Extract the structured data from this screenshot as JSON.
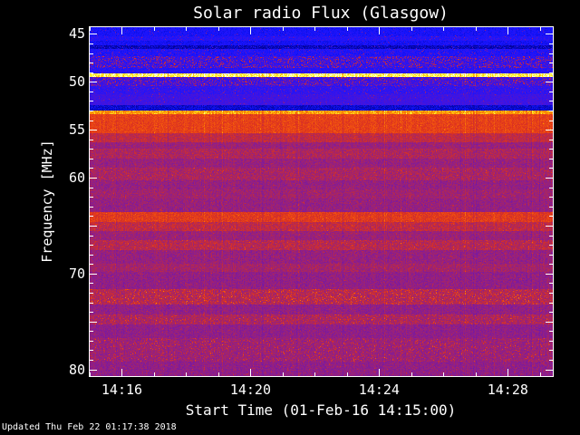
{
  "footer": {
    "updated": "Updated Thu Feb 22 01:17:38 2018"
  },
  "chart_data": {
    "type": "heatmap",
    "title": "Solar radio Flux (Glasgow)",
    "xlabel": "Start Time (01-Feb-16 14:15:00)",
    "ylabel": "Frequency [MHz]",
    "x_ticks": [
      {
        "label": "14:16",
        "minute": 16
      },
      {
        "label": "14:20",
        "minute": 20
      },
      {
        "label": "14:24",
        "minute": 24
      },
      {
        "label": "14:28",
        "minute": 28
      }
    ],
    "x_range_minutes": [
      15.0,
      29.4
    ],
    "y_ticks": [
      {
        "label": "45",
        "value": 45
      },
      {
        "label": "50",
        "value": 50
      },
      {
        "label": "55",
        "value": 55
      },
      {
        "label": "60",
        "value": 60
      },
      {
        "label": "70",
        "value": 70
      },
      {
        "label": "80",
        "value": 80
      }
    ],
    "y_major_unlabeled": [
      65,
      75
    ],
    "y_range_mhz": [
      44.3,
      80.7
    ],
    "y_axis_inverted_note": "frequency increases downward",
    "grid": false,
    "legend": "none",
    "colormap_stops": [
      [
        0.0,
        "#000020"
      ],
      [
        0.1,
        "#00008c"
      ],
      [
        0.22,
        "#1414ff"
      ],
      [
        0.33,
        "#3c14e6"
      ],
      [
        0.45,
        "#6414b4"
      ],
      [
        0.55,
        "#8c1e8c"
      ],
      [
        0.64,
        "#b42850"
      ],
      [
        0.72,
        "#dc3220"
      ],
      [
        0.8,
        "#f05010"
      ],
      [
        0.88,
        "#ff9600"
      ],
      [
        0.94,
        "#ffff3c"
      ],
      [
        1.0,
        "#ffffff"
      ]
    ],
    "bands": [
      {
        "f1": 44.3,
        "f2": 45.2,
        "mean": 0.23,
        "noise": 0.04,
        "speckle_p": 0.03,
        "speckle_gain": 0.35
      },
      {
        "f1": 45.2,
        "f2": 45.7,
        "mean": 0.27,
        "noise": 0.05,
        "speckle_p": 0.06,
        "speckle_gain": 0.3
      },
      {
        "f1": 45.7,
        "f2": 46.2,
        "mean": 0.22,
        "noise": 0.04,
        "speckle_p": 0.04,
        "speckle_gain": 0.3
      },
      {
        "f1": 46.2,
        "f2": 46.6,
        "mean": 0.15,
        "noise": 0.04,
        "speckle_p": 0.05,
        "speckle_gain": 0.3
      },
      {
        "f1": 46.6,
        "f2": 47.3,
        "mean": 0.25,
        "noise": 0.05,
        "speckle_p": 0.12,
        "speckle_gain": 0.3
      },
      {
        "f1": 47.3,
        "f2": 48.6,
        "mean": 0.3,
        "noise": 0.08,
        "speckle_p": 0.38,
        "speckle_gain": 0.4
      },
      {
        "f1": 48.6,
        "f2": 49.1,
        "mean": 0.27,
        "noise": 0.05,
        "speckle_p": 0.08,
        "speckle_gain": 0.3
      },
      {
        "f1": 49.1,
        "f2": 49.5,
        "mean": 0.95,
        "noise": 0.04,
        "speckle_p": 0.0,
        "speckle_gain": 0.0
      },
      {
        "f1": 49.5,
        "f2": 50.4,
        "mean": 0.33,
        "noise": 0.08,
        "speckle_p": 0.35,
        "speckle_gain": 0.35
      },
      {
        "f1": 50.4,
        "f2": 51.3,
        "mean": 0.3,
        "noise": 0.05,
        "speckle_p": 0.1,
        "speckle_gain": 0.3
      },
      {
        "f1": 51.3,
        "f2": 52.4,
        "mean": 0.34,
        "noise": 0.05,
        "speckle_p": 0.04,
        "speckle_gain": 0.25
      },
      {
        "f1": 52.4,
        "f2": 53.0,
        "mean": 0.17,
        "noise": 0.04,
        "speckle_p": 0.02,
        "speckle_gain": 0.2
      },
      {
        "f1": 53.0,
        "f2": 53.35,
        "mean": 0.88,
        "noise": 0.04,
        "speckle_p": 0.0,
        "speckle_gain": 0.0
      },
      {
        "f1": 53.35,
        "f2": 55.4,
        "mean": 0.76,
        "noise": 0.045,
        "speckle_p": 0.02,
        "speckle_gain": 0.08
      },
      {
        "f1": 55.4,
        "f2": 56.3,
        "mean": 0.66,
        "noise": 0.05,
        "speckle_p": 0.03,
        "speckle_gain": 0.06
      },
      {
        "f1": 56.3,
        "f2": 57.0,
        "mean": 0.58,
        "noise": 0.05,
        "speckle_p": 0.04,
        "speckle_gain": 0.08
      },
      {
        "f1": 57.0,
        "f2": 58.0,
        "mean": 0.62,
        "noise": 0.06,
        "speckle_p": 0.05,
        "speckle_gain": 0.08
      },
      {
        "f1": 58.0,
        "f2": 59.0,
        "mean": 0.575,
        "noise": 0.05,
        "speckle_p": 0.04,
        "speckle_gain": 0.08
      },
      {
        "f1": 59.0,
        "f2": 60.3,
        "mean": 0.61,
        "noise": 0.06,
        "speckle_p": 0.08,
        "speckle_gain": 0.12
      },
      {
        "f1": 60.3,
        "f2": 61.2,
        "mean": 0.57,
        "noise": 0.05,
        "speckle_p": 0.04,
        "speckle_gain": 0.1
      },
      {
        "f1": 61.2,
        "f2": 62.2,
        "mean": 0.59,
        "noise": 0.05,
        "speckle_p": 0.05,
        "speckle_gain": 0.1
      },
      {
        "f1": 62.2,
        "f2": 63.6,
        "mean": 0.57,
        "noise": 0.05,
        "speckle_p": 0.05,
        "speckle_gain": 0.1
      },
      {
        "f1": 63.6,
        "f2": 64.6,
        "mean": 0.74,
        "noise": 0.05,
        "speckle_p": 0.03,
        "speckle_gain": 0.08
      },
      {
        "f1": 64.6,
        "f2": 65.6,
        "mean": 0.66,
        "noise": 0.06,
        "speckle_p": 0.05,
        "speckle_gain": 0.1
      },
      {
        "f1": 65.6,
        "f2": 66.5,
        "mean": 0.58,
        "noise": 0.05,
        "speckle_p": 0.05,
        "speckle_gain": 0.1
      },
      {
        "f1": 66.5,
        "f2": 67.6,
        "mean": 0.64,
        "noise": 0.06,
        "speckle_p": 0.1,
        "speckle_gain": 0.12
      },
      {
        "f1": 67.6,
        "f2": 69.0,
        "mean": 0.57,
        "noise": 0.05,
        "speckle_p": 0.05,
        "speckle_gain": 0.1
      },
      {
        "f1": 69.0,
        "f2": 69.8,
        "mean": 0.6,
        "noise": 0.05,
        "speckle_p": 0.06,
        "speckle_gain": 0.1
      },
      {
        "f1": 69.8,
        "f2": 71.6,
        "mean": 0.56,
        "noise": 0.05,
        "speckle_p": 0.05,
        "speckle_gain": 0.1
      },
      {
        "f1": 71.6,
        "f2": 73.2,
        "mean": 0.63,
        "noise": 0.06,
        "speckle_p": 0.22,
        "speckle_gain": 0.18
      },
      {
        "f1": 73.2,
        "f2": 74.3,
        "mean": 0.56,
        "noise": 0.05,
        "speckle_p": 0.05,
        "speckle_gain": 0.1
      },
      {
        "f1": 74.3,
        "f2": 75.3,
        "mean": 0.61,
        "noise": 0.06,
        "speckle_p": 0.16,
        "speckle_gain": 0.15
      },
      {
        "f1": 75.3,
        "f2": 76.7,
        "mean": 0.555,
        "noise": 0.045,
        "speckle_p": 0.05,
        "speckle_gain": 0.1
      },
      {
        "f1": 76.7,
        "f2": 79.2,
        "mean": 0.58,
        "noise": 0.05,
        "speckle_p": 0.15,
        "speckle_gain": 0.18
      },
      {
        "f1": 79.2,
        "f2": 80.7,
        "mean": 0.555,
        "noise": 0.045,
        "speckle_p": 0.07,
        "speckle_gain": 0.12
      }
    ]
  }
}
